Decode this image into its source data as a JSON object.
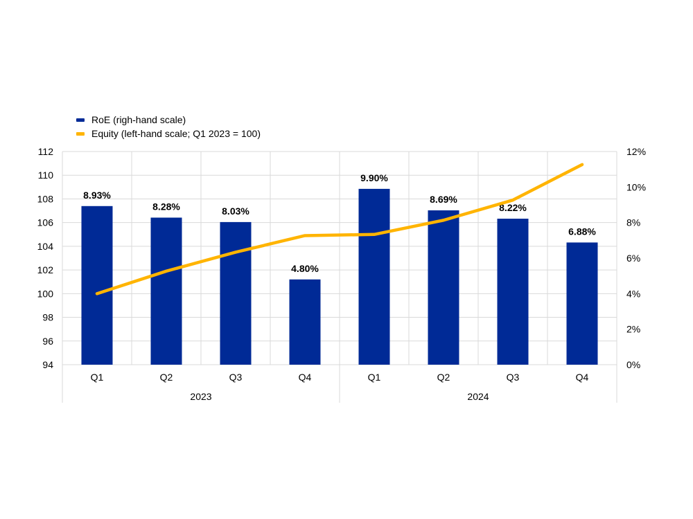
{
  "colors": {
    "bar": "#002A96",
    "line": "#FFB400",
    "grid": "#D9D9D9",
    "text": "#000000"
  },
  "legend": {
    "items": [
      {
        "label": "RoE (righ-hand scale)",
        "color": "#002A96"
      },
      {
        "label": "Equity (left-hand scale; Q1 2023 = 100)",
        "color": "#FFB400"
      }
    ]
  },
  "chart_data": {
    "type": "bar",
    "legend_position": "top-left",
    "grid": true,
    "categories": [
      "Q1",
      "Q2",
      "Q3",
      "Q4",
      "Q1",
      "Q2",
      "Q3",
      "Q4"
    ],
    "groups": [
      {
        "label": "2023",
        "categories": [
          "Q1",
          "Q2",
          "Q3",
          "Q4"
        ]
      },
      {
        "label": "2024",
        "categories": [
          "Q1",
          "Q2",
          "Q3",
          "Q4"
        ]
      }
    ],
    "left_axis": {
      "ylim": [
        94,
        112
      ],
      "ticks": [
        "94",
        "96",
        "98",
        "100",
        "102",
        "104",
        "106",
        "108",
        "110",
        "112"
      ]
    },
    "right_axis": {
      "ylim": [
        0,
        12
      ],
      "ticks": [
        "0%",
        "2%",
        "4%",
        "6%",
        "8%",
        "10%",
        "12%"
      ]
    },
    "series": [
      {
        "name": "RoE (righ-hand scale)",
        "type": "bar",
        "axis": "right",
        "values": [
          8.93,
          8.28,
          8.03,
          4.8,
          9.9,
          8.69,
          8.22,
          6.88
        ],
        "labels": [
          "8.93%",
          "8.28%",
          "8.03%",
          "4.80%",
          "9.90%",
          "8.69%",
          "8.22%",
          "6.88%"
        ]
      },
      {
        "name": "Equity (left-hand scale; Q1 2023 = 100)",
        "type": "line",
        "axis": "left",
        "values": [
          100.0,
          101.9,
          103.5,
          104.9,
          105.0,
          106.2,
          107.9,
          110.9
        ]
      }
    ]
  }
}
